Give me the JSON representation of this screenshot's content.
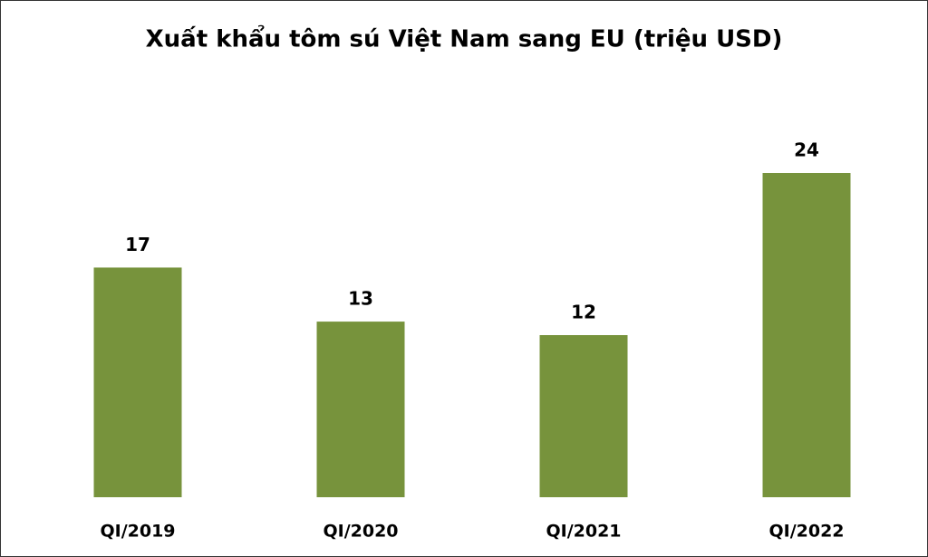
{
  "chart_data": {
    "type": "bar",
    "title": "Xuất khẩu tôm sú Việt Nam sang EU (triệu USD)",
    "categories": [
      "QI/2019",
      "QI/2020",
      "QI/2021",
      "QI/2022"
    ],
    "values": [
      17,
      13,
      12,
      24
    ],
    "color": "#77933c"
  }
}
